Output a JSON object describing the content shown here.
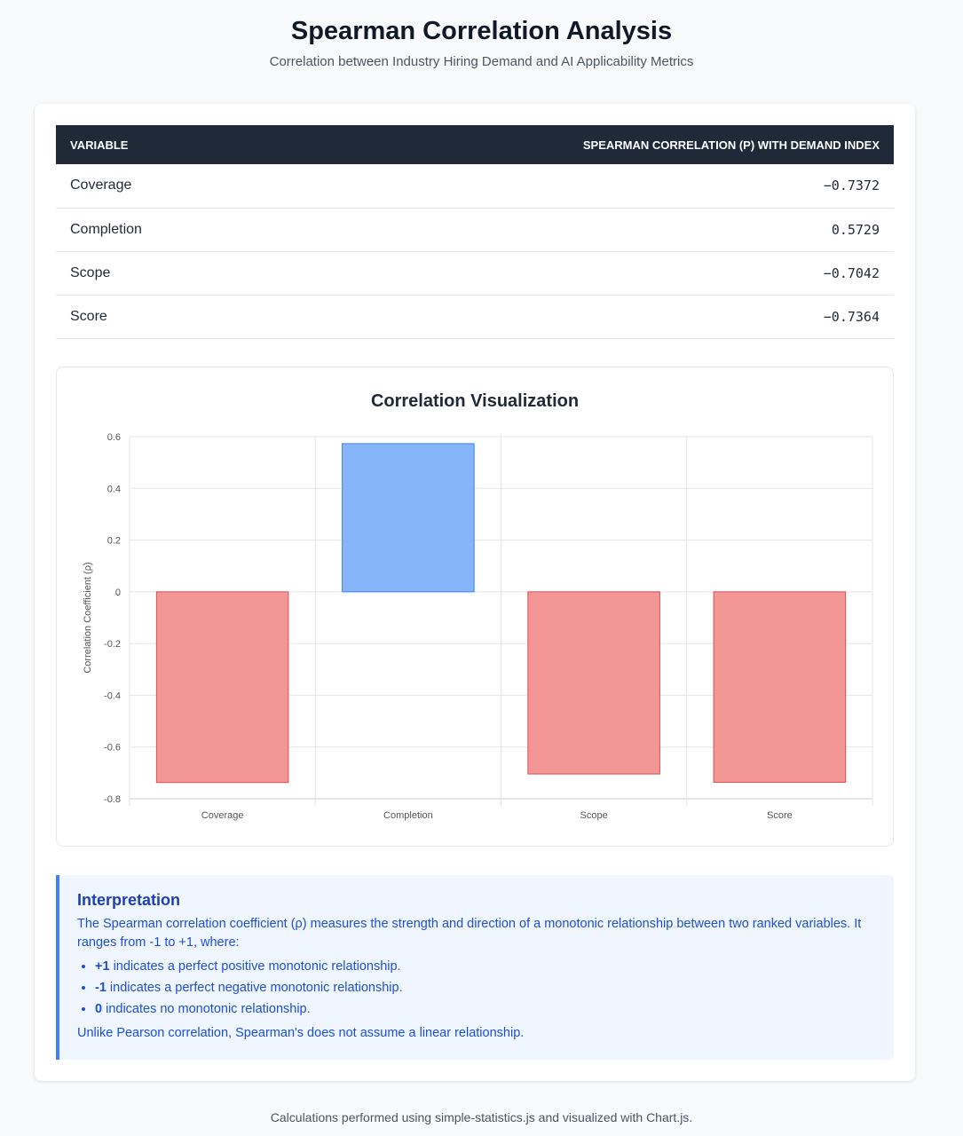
{
  "header": {
    "title": "Spearman Correlation Analysis",
    "subtitle": "Correlation between Industry Hiring Demand and AI Applicability Metrics"
  },
  "table": {
    "columns": [
      "Variable",
      "Spearman Correlation (ρ) with Demand Index"
    ],
    "rows": [
      {
        "variable": "Coverage",
        "value": "−0.7372"
      },
      {
        "variable": "Completion",
        "value": "0.5729"
      },
      {
        "variable": "Scope",
        "value": "−0.7042"
      },
      {
        "variable": "Score",
        "value": "−0.7364"
      }
    ]
  },
  "chart_data": {
    "type": "bar",
    "title": "Correlation Visualization",
    "xlabel": "",
    "ylabel": "Correlation Coefficient (ρ)",
    "categories": [
      "Coverage",
      "Completion",
      "Scope",
      "Score"
    ],
    "values": [
      -0.7372,
      0.5729,
      -0.7042,
      -0.7364
    ],
    "ylim": [
      -0.8,
      0.6
    ],
    "yticks": [
      "0.6",
      "0.4",
      "0.2",
      "0",
      "-0.2",
      "-0.4",
      "-0.6",
      "-0.8"
    ],
    "grid": true,
    "colors": {
      "positive": "#86b5f9",
      "positive_border": "#3b82f6",
      "negative": "#f29696",
      "negative_border": "#dc5050"
    }
  },
  "interpretation": {
    "title": "Interpretation",
    "intro": "The Spearman correlation coefficient (ρ) measures the strength and direction of a monotonic relationship between two ranked variables. It ranges from -1 to +1, where:",
    "items": [
      {
        "bold": "+1",
        "text": " indicates a perfect positive monotonic relationship."
      },
      {
        "bold": "-1",
        "text": " indicates a perfect negative monotonic relationship."
      },
      {
        "bold": "0",
        "text": " indicates no monotonic relationship."
      }
    ],
    "note": "Unlike Pearson correlation, Spearman's does not assume a linear relationship."
  },
  "footer": "Calculations performed using simple-statistics.js and visualized with Chart.js."
}
